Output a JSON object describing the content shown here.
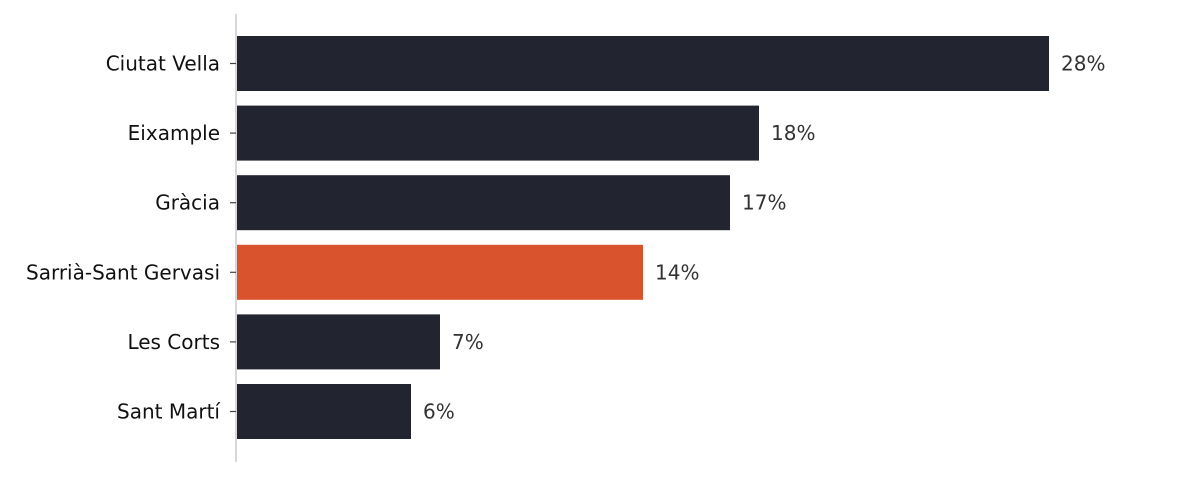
{
  "chart_data": {
    "type": "bar",
    "orientation": "horizontal",
    "categories": [
      "Ciutat Vella",
      "Eixample",
      "Gràcia",
      "Sarrià-Sant Gervasi",
      "Les Corts",
      "Sant Martí"
    ],
    "values": [
      28,
      18,
      17,
      14,
      7,
      6
    ],
    "value_labels": [
      "28%",
      "18%",
      "17%",
      "14%",
      "7%",
      "6%"
    ],
    "unit": "%",
    "highlight_category": "Sarrià-Sant Gervasi",
    "xlim": [
      0,
      35
    ],
    "grid": false,
    "legend": "none",
    "title": "",
    "xlabel": "",
    "ylabel": ""
  },
  "colors": {
    "bar": "#222530",
    "highlight": "#d9532c",
    "axis": "#cccccc",
    "tick": "#444444",
    "label": "#111111",
    "value_label": "#333333"
  }
}
